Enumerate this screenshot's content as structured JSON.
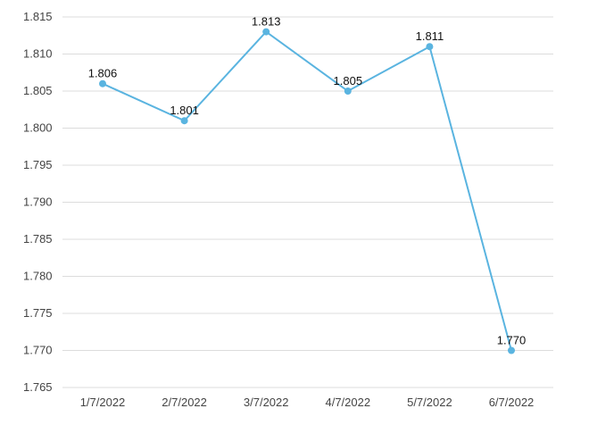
{
  "chart_data": {
    "type": "line",
    "categories": [
      "1/7/2022",
      "2/7/2022",
      "3/7/2022",
      "4/7/2022",
      "5/7/2022",
      "6/7/2022"
    ],
    "series": [
      {
        "values": [
          1.806,
          1.801,
          1.813,
          1.805,
          1.811,
          1.77
        ],
        "color": "#5ab4e0"
      }
    ],
    "data_labels": [
      "1.806",
      "1.801",
      "1.813",
      "1.805",
      "1.811",
      "1.770"
    ],
    "y_ticks": [
      "1.765",
      "1.770",
      "1.775",
      "1.780",
      "1.785",
      "1.790",
      "1.795",
      "1.800",
      "1.805",
      "1.810",
      "1.815"
    ],
    "ylim": [
      1.765,
      1.815
    ],
    "grid": true,
    "legend": "none",
    "title": "",
    "xlabel": "",
    "ylabel": ""
  }
}
